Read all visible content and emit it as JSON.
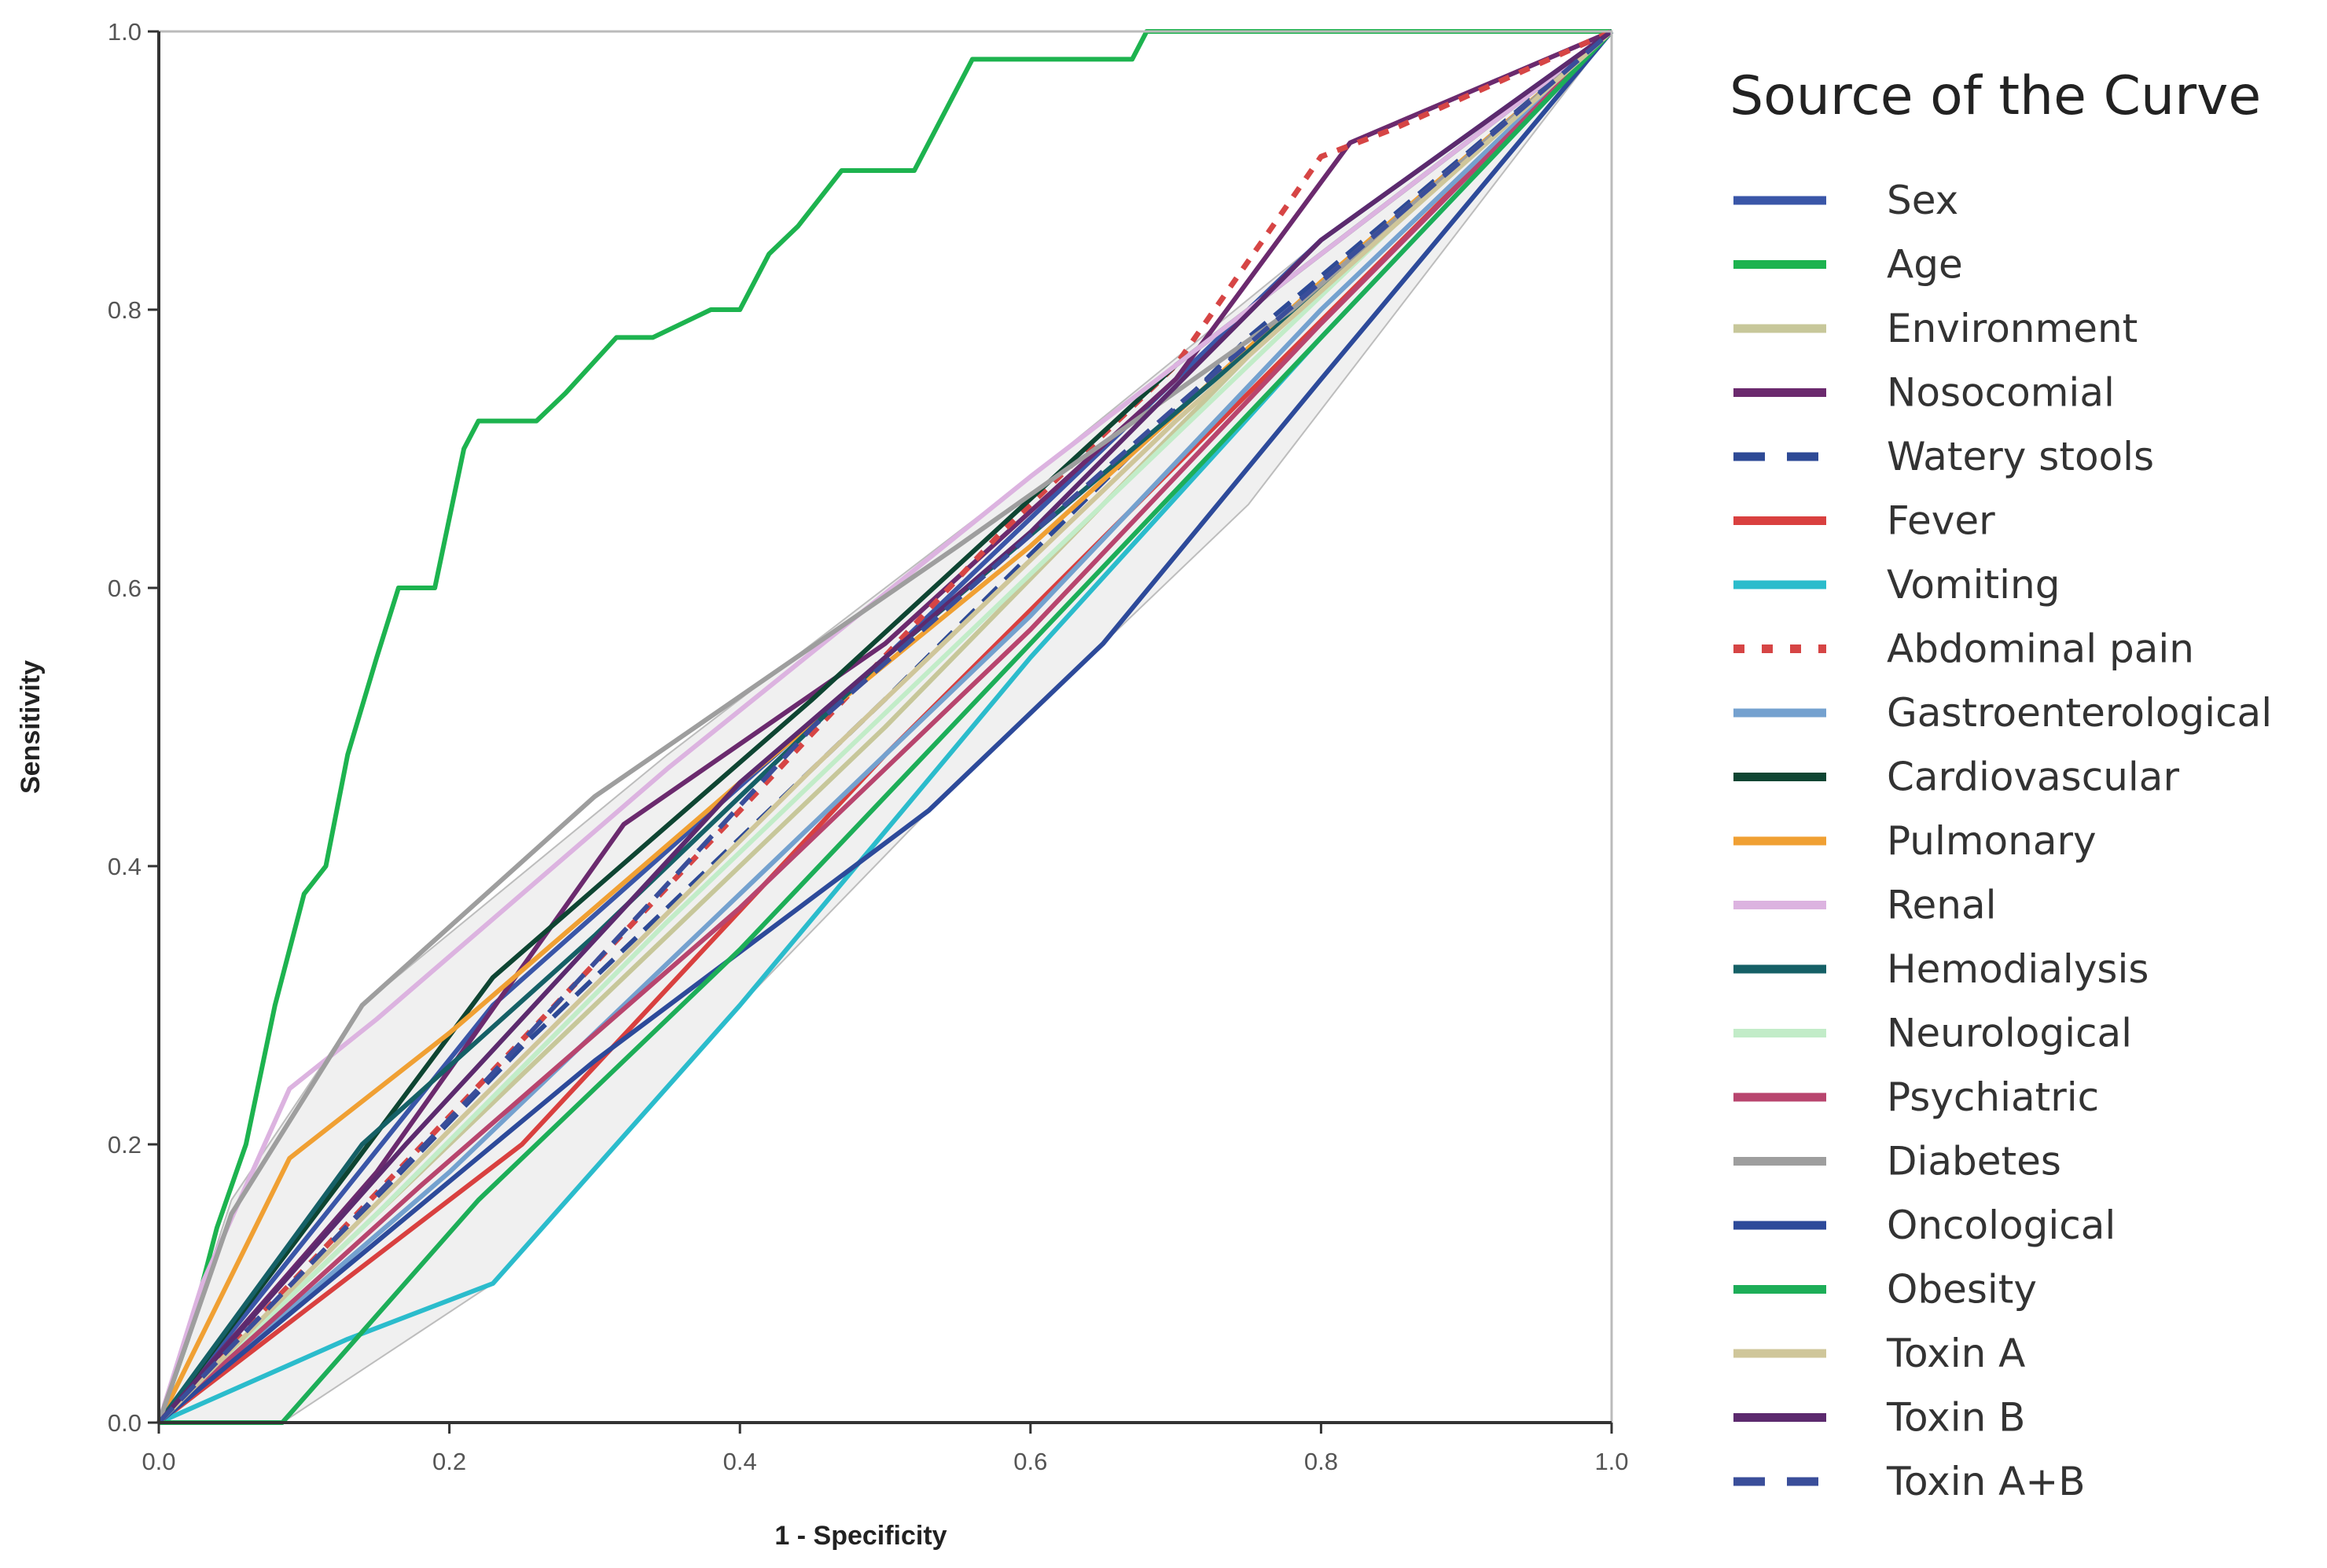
{
  "chart_data": {
    "type": "line",
    "title": "",
    "xlabel": "1 - Specificity",
    "ylabel": "Sensitivity",
    "xlim": [
      0,
      1
    ],
    "ylim": [
      0,
      1
    ],
    "x_ticks": [
      "0.0",
      "0.2",
      "0.4",
      "0.6",
      "0.8",
      "1.0"
    ],
    "y_ticks": [
      "0.0",
      "0.2",
      "0.4",
      "0.6",
      "0.8",
      "1.0"
    ],
    "grid": false,
    "legend_title": "Source of the Curve",
    "legend_position": "right",
    "series": [
      {
        "name": "Sex",
        "color": "#3a56a8",
        "dash": "solid",
        "points": [
          [
            0,
            0
          ],
          [
            0.23,
            0.3
          ],
          [
            0.5,
            0.55
          ],
          [
            0.8,
            0.85
          ],
          [
            1,
            1
          ]
        ]
      },
      {
        "name": "Age",
        "color": "#1db34f",
        "dash": "solid",
        "points": [
          [
            0,
            0
          ],
          [
            0.02,
            0.06
          ],
          [
            0.04,
            0.14
          ],
          [
            0.06,
            0.2
          ],
          [
            0.08,
            0.3
          ],
          [
            0.1,
            0.38
          ],
          [
            0.115,
            0.4
          ],
          [
            0.13,
            0.48
          ],
          [
            0.15,
            0.55
          ],
          [
            0.165,
            0.6
          ],
          [
            0.19,
            0.6
          ],
          [
            0.21,
            0.7
          ],
          [
            0.22,
            0.72
          ],
          [
            0.26,
            0.72
          ],
          [
            0.28,
            0.74
          ],
          [
            0.315,
            0.78
          ],
          [
            0.34,
            0.78
          ],
          [
            0.38,
            0.8
          ],
          [
            0.4,
            0.8
          ],
          [
            0.42,
            0.84
          ],
          [
            0.44,
            0.86
          ],
          [
            0.47,
            0.9
          ],
          [
            0.52,
            0.9
          ],
          [
            0.54,
            0.94
          ],
          [
            0.56,
            0.98
          ],
          [
            0.67,
            0.98
          ],
          [
            0.68,
            1.0
          ],
          [
            1,
            1
          ]
        ]
      },
      {
        "name": "Environment",
        "color": "#c7c79a",
        "dash": "solid",
        "points": [
          [
            0,
            0
          ],
          [
            0.2,
            0.2
          ],
          [
            0.5,
            0.5
          ],
          [
            0.8,
            0.82
          ],
          [
            1,
            1
          ]
        ]
      },
      {
        "name": "Nosocomial",
        "color": "#6b2a6e",
        "dash": "solid",
        "points": [
          [
            0,
            0
          ],
          [
            0.15,
            0.18
          ],
          [
            0.32,
            0.43
          ],
          [
            0.5,
            0.56
          ],
          [
            0.7,
            0.75
          ],
          [
            0.82,
            0.92
          ],
          [
            1,
            1
          ]
        ]
      },
      {
        "name": "Watery stools",
        "color": "#2e4a96",
        "dash": "dashed",
        "points": [
          [
            0,
            0
          ],
          [
            0.25,
            0.27
          ],
          [
            0.5,
            0.52
          ],
          [
            0.75,
            0.78
          ],
          [
            1,
            1
          ]
        ]
      },
      {
        "name": "Fever",
        "color": "#d9403f",
        "dash": "solid",
        "points": [
          [
            0,
            0
          ],
          [
            0.1,
            0.08
          ],
          [
            0.25,
            0.2
          ],
          [
            0.5,
            0.48
          ],
          [
            0.75,
            0.74
          ],
          [
            1,
            1
          ]
        ]
      },
      {
        "name": "Vomiting",
        "color": "#2bbccc",
        "dash": "solid",
        "points": [
          [
            0,
            0
          ],
          [
            0.13,
            0.06
          ],
          [
            0.23,
            0.1
          ],
          [
            0.4,
            0.3
          ],
          [
            0.6,
            0.55
          ],
          [
            0.8,
            0.78
          ],
          [
            1,
            1
          ]
        ]
      },
      {
        "name": "Abdominal pain",
        "color": "#d64545",
        "dash": "dotted",
        "points": [
          [
            0,
            0
          ],
          [
            0.2,
            0.22
          ],
          [
            0.4,
            0.44
          ],
          [
            0.58,
            0.64
          ],
          [
            0.7,
            0.76
          ],
          [
            0.8,
            0.91
          ],
          [
            0.85,
            0.93
          ],
          [
            1,
            1
          ]
        ]
      },
      {
        "name": "Gastroenterological",
        "color": "#74a1cf",
        "dash": "solid",
        "points": [
          [
            0,
            0
          ],
          [
            0.2,
            0.18
          ],
          [
            0.4,
            0.38
          ],
          [
            0.6,
            0.58
          ],
          [
            0.8,
            0.8
          ],
          [
            1,
            1
          ]
        ]
      },
      {
        "name": "Cardiovascular",
        "color": "#0e4532",
        "dash": "solid",
        "points": [
          [
            0,
            0
          ],
          [
            0.13,
            0.18
          ],
          [
            0.23,
            0.32
          ],
          [
            0.45,
            0.52
          ],
          [
            0.7,
            0.76
          ],
          [
            1,
            1
          ]
        ]
      },
      {
        "name": "Pulmonary",
        "color": "#f0a033",
        "dash": "solid",
        "points": [
          [
            0,
            0
          ],
          [
            0.09,
            0.19
          ],
          [
            0.2,
            0.28
          ],
          [
            0.4,
            0.46
          ],
          [
            0.6,
            0.63
          ],
          [
            0.8,
            0.82
          ],
          [
            1,
            1
          ]
        ]
      },
      {
        "name": "Renal",
        "color": "#dcb3e0",
        "dash": "solid",
        "points": [
          [
            0,
            0
          ],
          [
            0.03,
            0.1
          ],
          [
            0.09,
            0.24
          ],
          [
            0.15,
            0.29
          ],
          [
            0.35,
            0.47
          ],
          [
            0.6,
            0.68
          ],
          [
            0.8,
            0.84
          ],
          [
            1,
            1
          ]
        ]
      },
      {
        "name": "Hemodialysis",
        "color": "#156066",
        "dash": "solid",
        "points": [
          [
            0,
            0
          ],
          [
            0.14,
            0.2
          ],
          [
            0.3,
            0.35
          ],
          [
            0.5,
            0.55
          ],
          [
            0.75,
            0.77
          ],
          [
            1,
            1
          ]
        ]
      },
      {
        "name": "Neurological",
        "color": "#c2ecc8",
        "dash": "solid",
        "points": [
          [
            0,
            0
          ],
          [
            0.15,
            0.15
          ],
          [
            0.35,
            0.36
          ],
          [
            0.6,
            0.61
          ],
          [
            0.85,
            0.86
          ],
          [
            1,
            1
          ]
        ]
      },
      {
        "name": "Psychiatric",
        "color": "#b8456e",
        "dash": "solid",
        "points": [
          [
            0,
            0
          ],
          [
            0.18,
            0.17
          ],
          [
            0.4,
            0.37
          ],
          [
            0.6,
            0.57
          ],
          [
            0.8,
            0.79
          ],
          [
            1,
            1
          ]
        ]
      },
      {
        "name": "Diabetes",
        "color": "#9e9e9e",
        "dash": "solid",
        "points": [
          [
            0,
            0
          ],
          [
            0.05,
            0.15
          ],
          [
            0.14,
            0.3
          ],
          [
            0.3,
            0.45
          ],
          [
            0.55,
            0.63
          ],
          [
            0.78,
            0.8
          ],
          [
            1,
            1
          ]
        ]
      },
      {
        "name": "Oncological",
        "color": "#2d4a9a",
        "dash": "solid",
        "points": [
          [
            0,
            0
          ],
          [
            0.15,
            0.13
          ],
          [
            0.3,
            0.26
          ],
          [
            0.53,
            0.44
          ],
          [
            0.65,
            0.56
          ],
          [
            0.8,
            0.75
          ],
          [
            1,
            1
          ]
        ]
      },
      {
        "name": "Obesity",
        "color": "#1dae58",
        "dash": "solid",
        "points": [
          [
            0,
            0
          ],
          [
            0.085,
            0
          ],
          [
            0.22,
            0.16
          ],
          [
            0.4,
            0.34
          ],
          [
            0.6,
            0.56
          ],
          [
            0.8,
            0.78
          ],
          [
            1,
            1
          ]
        ]
      },
      {
        "name": "Toxin A",
        "color": "#cfc69a",
        "dash": "solid",
        "points": [
          [
            0,
            0
          ],
          [
            0.2,
            0.21
          ],
          [
            0.45,
            0.47
          ],
          [
            0.7,
            0.72
          ],
          [
            1,
            1
          ]
        ]
      },
      {
        "name": "Toxin B",
        "color": "#5c2a6e",
        "dash": "solid",
        "points": [
          [
            0,
            0
          ],
          [
            0.17,
            0.2
          ],
          [
            0.4,
            0.46
          ],
          [
            0.6,
            0.64
          ],
          [
            0.8,
            0.85
          ],
          [
            1,
            1
          ]
        ]
      },
      {
        "name": "Toxin A+B",
        "color": "#3a4e9a",
        "dash": "dashed",
        "points": [
          [
            0,
            0
          ],
          [
            0.22,
            0.24
          ],
          [
            0.45,
            0.5
          ],
          [
            0.7,
            0.73
          ],
          [
            1,
            1
          ]
        ]
      }
    ],
    "reference_band": {
      "color": "#d4d4d4",
      "upper": [
        [
          0,
          0
        ],
        [
          0.05,
          0.16
        ],
        [
          0.14,
          0.3
        ],
        [
          0.35,
          0.48
        ],
        [
          0.6,
          0.68
        ],
        [
          0.8,
          0.85
        ],
        [
          1,
          1
        ]
      ],
      "lower": [
        [
          0,
          0
        ],
        [
          0.085,
          0
        ],
        [
          0.23,
          0.1
        ],
        [
          0.4,
          0.3
        ],
        [
          0.53,
          0.44
        ],
        [
          0.75,
          0.66
        ],
        [
          1,
          1
        ]
      ]
    }
  }
}
